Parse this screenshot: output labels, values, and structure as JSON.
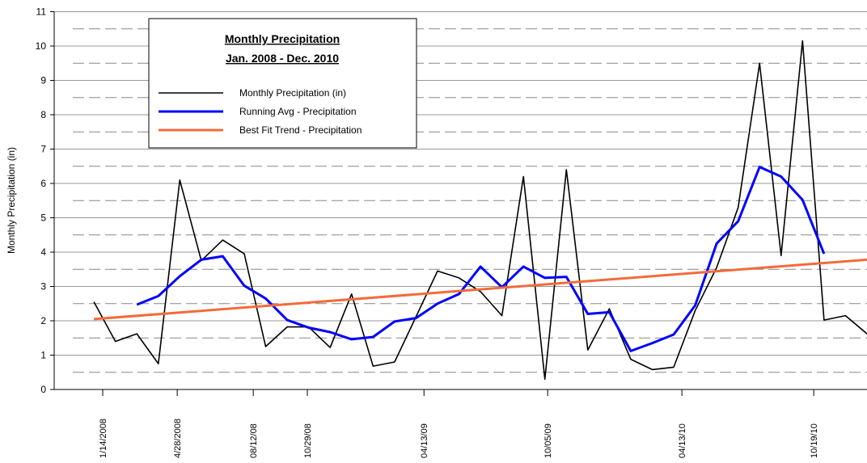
{
  "chart_data": {
    "type": "line",
    "title": "Monthly Precipitation",
    "subtitle": "Jan. 2008 - Dec. 2010",
    "y_label": "Monthly Precipitation (in)",
    "x": [
      0,
      1,
      2,
      3,
      4,
      5,
      6,
      7,
      8,
      9,
      10,
      11,
      12,
      13,
      14,
      15,
      16,
      17,
      18,
      19,
      20,
      21,
      22,
      23,
      24,
      25,
      26,
      27,
      28,
      29,
      30,
      31,
      32,
      33,
      34,
      35,
      36
    ],
    "series": [
      {
        "name": "Monthly Precipitation (in)",
        "color": "#000000",
        "values": [
          2.55,
          1.4,
          1.62,
          0.75,
          6.1,
          3.75,
          4.35,
          3.95,
          1.25,
          1.82,
          1.82,
          1.22,
          2.78,
          0.68,
          0.8,
          2.12,
          3.45,
          3.25,
          2.85,
          2.15,
          6.2,
          0.3,
          6.4,
          1.15,
          2.35,
          0.88,
          0.58,
          0.65,
          2.3,
          3.55,
          5.3,
          9.5,
          3.9,
          10.15,
          2.02,
          2.15,
          1.62
        ]
      },
      {
        "name": "Running Avg - Precipitation",
        "color": "#0000ff",
        "values": [
          null,
          null,
          2.47,
          2.72,
          3.3,
          3.78,
          3.88,
          3.02,
          2.65,
          2.02,
          1.8,
          1.67,
          1.46,
          1.53,
          1.98,
          2.08,
          2.5,
          2.78,
          3.58,
          2.98,
          3.58,
          3.25,
          3.28,
          2.2,
          2.25,
          1.12,
          1.35,
          1.6,
          2.45,
          4.25,
          4.9,
          6.48,
          6.2,
          5.52,
          3.95,
          null,
          null
        ]
      },
      {
        "name": "Best Fit Trend - Precipitation",
        "color": "#f26b3a",
        "x": [
          0,
          36
        ],
        "values": [
          2.05,
          3.78
        ]
      }
    ],
    "xlim": [
      -1.85,
      36
    ],
    "xticks": [
      {
        "value": 0.41,
        "label": "1/14/2008"
      },
      {
        "value": 3.88,
        "label": "4/28/2008"
      },
      {
        "value": 7.42,
        "label": "08/12/08"
      },
      {
        "value": 9.94,
        "label": "10/29/08"
      },
      {
        "value": 15.37,
        "label": "04/13/09"
      },
      {
        "value": 21.13,
        "label": "10/05/09"
      },
      {
        "value": 27.38,
        "label": "04/13/10"
      },
      {
        "value": 33.52,
        "label": "10/19/10"
      }
    ],
    "ylim": [
      0,
      11
    ],
    "yticks": [
      0,
      1,
      2,
      3,
      4,
      5,
      6,
      7,
      8,
      9,
      10,
      11
    ],
    "minor_yticks": [
      0.5,
      1.5,
      2.5,
      3.5,
      4.5,
      5.5,
      6.5,
      7.5,
      8.5,
      9.5,
      10.5
    ],
    "grid": true
  }
}
